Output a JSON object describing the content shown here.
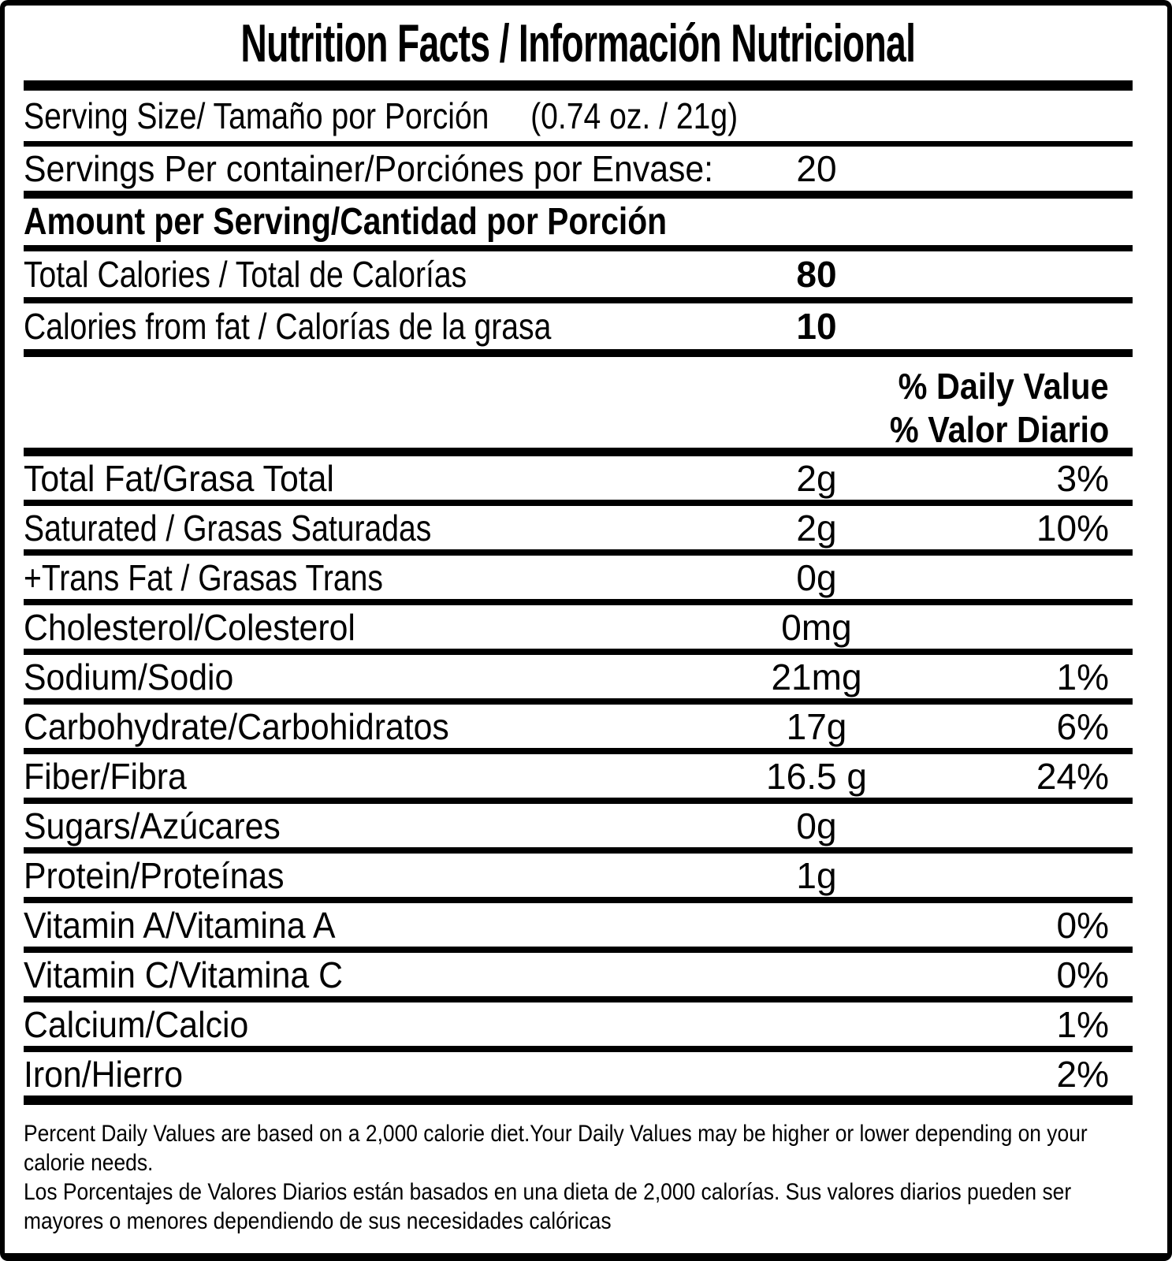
{
  "colors": {
    "ink": "#000000",
    "paper": "#ffffff"
  },
  "title": "Nutrition Facts / Información Nutricional",
  "serving_size": {
    "label": "Serving Size/ Tamaño por Porción",
    "value": "(0.74 oz. / 21g)"
  },
  "servings_per_container": {
    "label": "Servings Per container/Porciónes por Envase:",
    "value": "20"
  },
  "amount_per_serving": "Amount per Serving/Cantidad por Porción",
  "calories": [
    {
      "label": "Total Calories / Total de Calorías",
      "value": "80"
    },
    {
      "label": "Calories from fat / Calorías de la grasa",
      "value": "10"
    }
  ],
  "daily_value_header": [
    "% Daily Value",
    "% Valor Diario"
  ],
  "nutrients": [
    {
      "label": "Total Fat/Grasa Total",
      "amount": "2g",
      "dv": "3%",
      "condensed": false
    },
    {
      "label": "Saturated / Grasas Saturadas",
      "amount": "2g",
      "dv": "10%",
      "condensed": true
    },
    {
      "label": "+Trans Fat / Grasas Trans",
      "amount": "0g",
      "dv": "",
      "condensed": true
    },
    {
      "label": "Cholesterol/Colesterol",
      "amount": "0mg",
      "dv": "",
      "condensed": false
    },
    {
      "label": "Sodium/Sodio",
      "amount": "21mg",
      "dv": "1%",
      "condensed": false
    },
    {
      "label": "Carbohydrate/Carbohidratos",
      "amount": "17g",
      "dv": "6%",
      "condensed": false
    },
    {
      "label": "Fiber/Fibra",
      "amount": "16.5 g",
      "dv": "24%",
      "condensed": false
    },
    {
      "label": "Sugars/Azúcares",
      "amount": "0g",
      "dv": "",
      "condensed": false
    },
    {
      "label": "Protein/Proteínas",
      "amount": "1g",
      "dv": "",
      "condensed": false
    },
    {
      "label": "Vitamin A/Vitamina A",
      "amount": "",
      "dv": "0%",
      "condensed": false
    },
    {
      "label": "Vitamin C/Vitamina C",
      "amount": "",
      "dv": "0%",
      "condensed": false
    },
    {
      "label": "Calcium/Calcio",
      "amount": "",
      "dv": "1%",
      "condensed": false
    },
    {
      "label": "Iron/Hierro",
      "amount": "",
      "dv": "2%",
      "condensed": false
    }
  ],
  "footnote_en": "Percent Daily Values are based on a 2,000 calorie diet.Your Daily Values may be higher or lower depending on your calorie needs.",
  "footnote_es": "Los Porcentajes de Valores Diarios están basados en una dieta de 2,000 calorías. Sus valores diarios pueden ser mayores o menores dependiendo de sus necesidades calóricas"
}
